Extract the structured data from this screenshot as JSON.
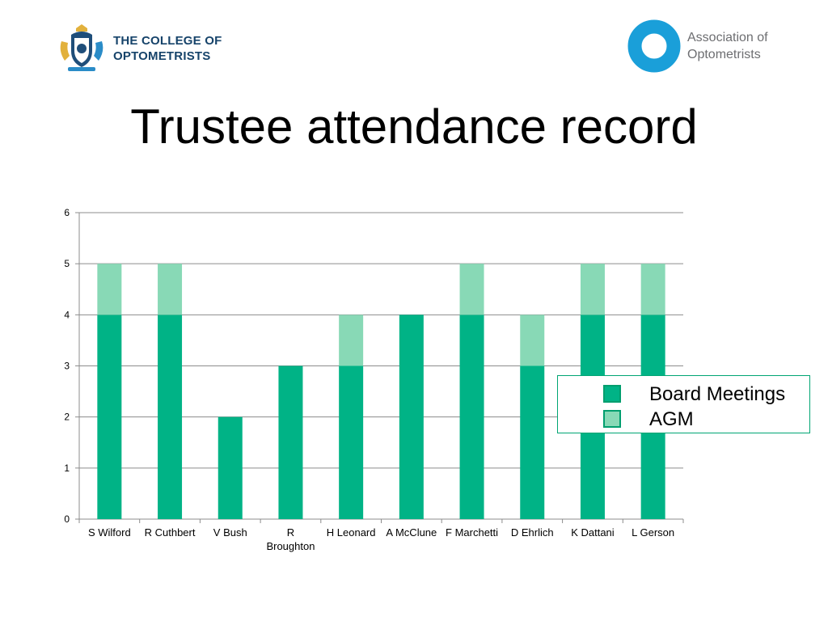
{
  "header": {
    "college_logo_line1": "THE COLLEGE OF",
    "college_logo_line2": "OPTOMETRISTS",
    "assoc_logo_line1": "Association of",
    "assoc_logo_line2": "Optometrists",
    "slide_title": "Trustee attendance record"
  },
  "colors": {
    "board": "#00b386",
    "agm": "#88d9b6",
    "logo_blue": "#16436a",
    "ring_blue": "#1a9fd9"
  },
  "chart_data": {
    "type": "bar",
    "stacked": true,
    "title": "",
    "xlabel": "",
    "ylabel": "",
    "ylim": [
      0,
      6
    ],
    "yticks": [
      0,
      1,
      2,
      3,
      4,
      5,
      6
    ],
    "grid": true,
    "legend_position": "right",
    "categories": [
      "S Wilford",
      "R Cuthbert",
      "V Bush",
      "R Broughton",
      "H Leonard",
      "A McClune",
      "F Marchetti",
      "D Ehrlich",
      "K Dattani",
      "L Gerson"
    ],
    "category_lines": [
      [
        "S Wilford"
      ],
      [
        "R Cuthbert"
      ],
      [
        "V Bush"
      ],
      [
        "R",
        "Broughton"
      ],
      [
        "H Leonard"
      ],
      [
        "A McClune"
      ],
      [
        "F Marchetti"
      ],
      [
        "D Ehrlich"
      ],
      [
        "K Dattani"
      ],
      [
        "L Gerson"
      ]
    ],
    "series": [
      {
        "name": "Board Meetings",
        "values": [
          4,
          4,
          2,
          3,
          3,
          4,
          4,
          3,
          4,
          4
        ]
      },
      {
        "name": "AGM",
        "values": [
          1,
          1,
          0,
          0,
          1,
          0,
          1,
          1,
          1,
          1
        ]
      }
    ]
  }
}
